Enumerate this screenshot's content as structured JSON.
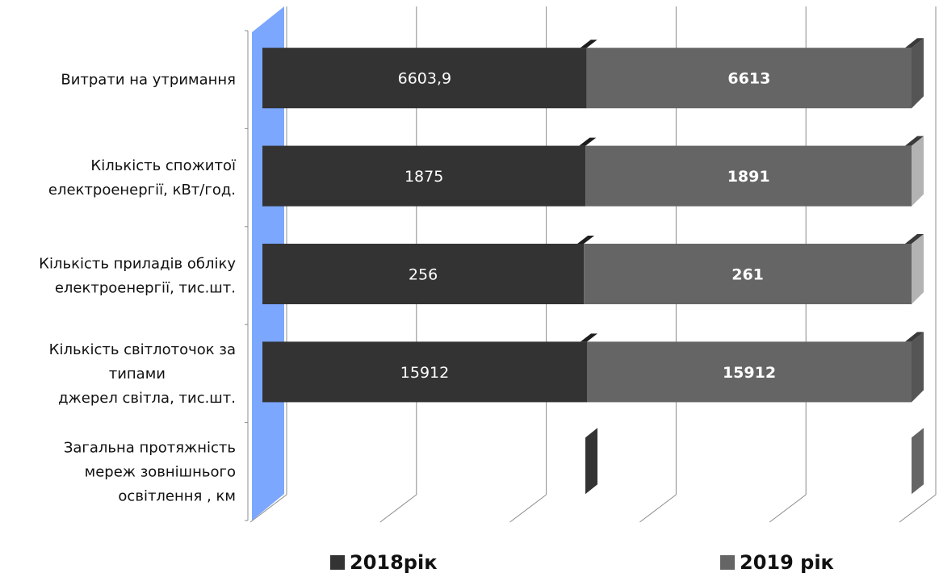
{
  "chart_data": {
    "type": "bar",
    "orientation": "horizontal",
    "stacked": "100%",
    "three_d": true,
    "categories": [
      [
        "Витрати на утримання"
      ],
      [
        "Кількість спожитої",
        "електроенергії,  кВт/год."
      ],
      [
        "Кількість приладів обліку",
        "електроенергії, тис.шт."
      ],
      [
        "Кількість світлоточок за",
        "типами",
        "джерел світла, тис.шт."
      ],
      [
        "Загальна протяжність",
        "мереж зовнішнього",
        "освітлення , км"
      ]
    ],
    "series": [
      {
        "name": "2018рік",
        "values": [
          6603.9,
          1875,
          256,
          15912,
          0
        ],
        "labels": [
          "6603,9",
          "1875",
          "256",
          "15912",
          ""
        ]
      },
      {
        "name": "2019 рік",
        "values": [
          6613,
          1891,
          261,
          15912,
          0
        ],
        "labels": [
          "6613",
          "1891",
          "261",
          "15912",
          ""
        ]
      }
    ],
    "grid": true,
    "legend_position": "bottom",
    "colors": {
      "series_2018": "#333333",
      "series_2019": "#656565",
      "axis_wall": "#7ba7ff",
      "gridline": "#8c8c8c"
    }
  },
  "legend": {
    "item_2018": "2018рік",
    "item_2019": "2019 рік"
  }
}
